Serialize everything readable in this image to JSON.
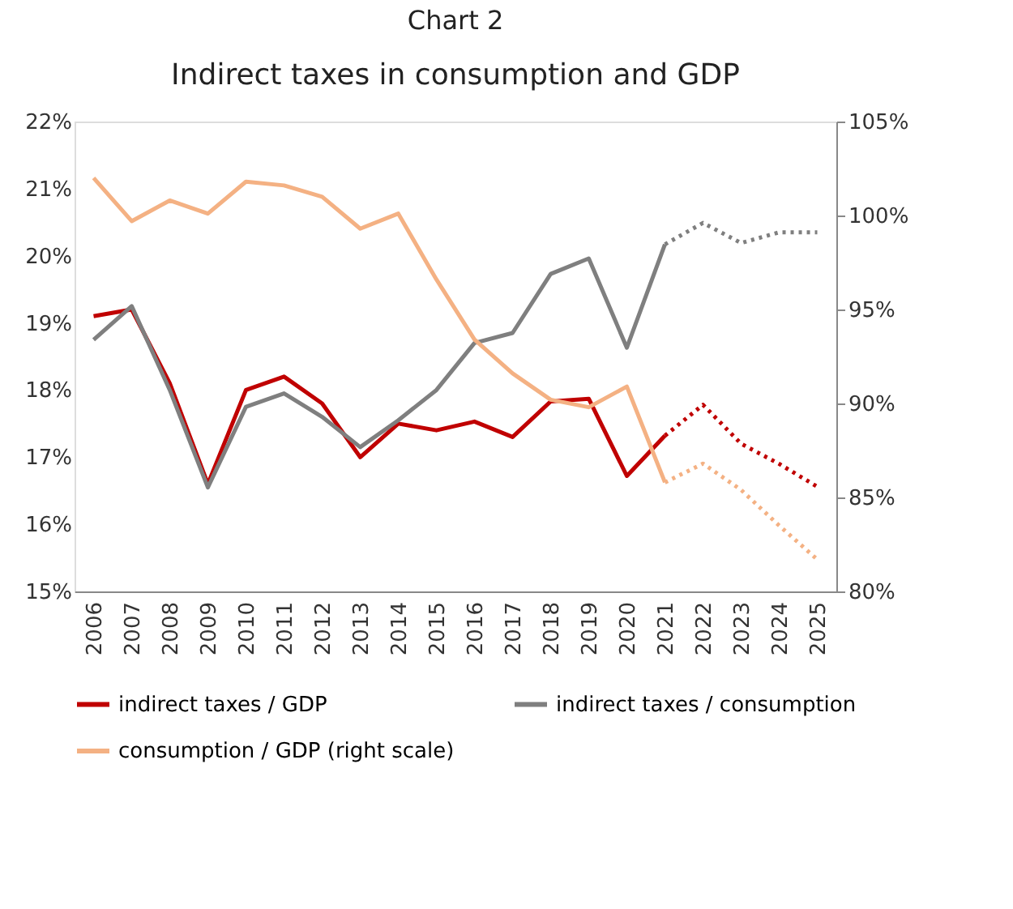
{
  "chart_data": {
    "type": "line",
    "title": "Indirect taxes in consumption and GDP",
    "annotations": [
      "Chart 2"
    ],
    "categories": [
      "2006",
      "2007",
      "2008",
      "2009",
      "2010",
      "2011",
      "2012",
      "2013",
      "2014",
      "2015",
      "2016",
      "2017",
      "2018",
      "2019",
      "2020",
      "2021",
      "2022",
      "2023",
      "2024",
      "2025"
    ],
    "series": [
      {
        "name": "indirect taxes / GDP",
        "color": "#c00000",
        "line_style": "solid",
        "values": [
          19.1,
          19.2,
          18.1,
          16.6,
          18.0,
          18.2,
          17.8,
          17.0,
          17.5,
          17.4,
          17.53,
          17.3,
          17.83,
          17.87,
          16.72,
          17.32,
          null,
          null,
          null,
          null
        ]
      },
      {
        "name": "indirect taxes / consumption",
        "color": "#7f7f7f",
        "line_style": "solid",
        "values": [
          18.75,
          19.25,
          18.0,
          16.55,
          17.75,
          17.95,
          17.6,
          17.15,
          17.55,
          18.0,
          18.7,
          18.85,
          19.73,
          19.96,
          18.63,
          20.17,
          null,
          null,
          null,
          null
        ]
      },
      {
        "name": "consumption / GDP (right scale)",
        "color": "#f4b183",
        "line_style": "solid",
        "axis": "y2",
        "values": [
          102.0,
          99.7,
          100.8,
          100.1,
          101.8,
          101.6,
          101.0,
          99.3,
          100.1,
          96.6,
          93.4,
          91.6,
          90.2,
          89.8,
          90.9,
          85.8,
          null,
          null,
          null,
          null
        ]
      },
      {
        "color": "#c00000",
        "line_style": "dotted",
        "values": [
          null,
          null,
          null,
          null,
          null,
          null,
          null,
          null,
          null,
          null,
          null,
          null,
          null,
          null,
          null,
          17.32,
          17.78,
          17.2,
          16.9,
          16.56
        ]
      },
      {
        "color": "#7f7f7f",
        "line_style": "dotted",
        "values": [
          null,
          null,
          null,
          null,
          null,
          null,
          null,
          null,
          null,
          null,
          null,
          null,
          null,
          null,
          null,
          20.17,
          20.49,
          20.19,
          20.35,
          20.35
        ]
      },
      {
        "color": "#f4b183",
        "line_style": "dotted",
        "axis": "y2",
        "values": [
          null,
          null,
          null,
          null,
          null,
          null,
          null,
          null,
          null,
          null,
          null,
          null,
          null,
          null,
          null,
          85.8,
          86.8,
          85.4,
          83.5,
          81.7
        ]
      }
    ],
    "ylim": [
      15,
      22
    ],
    "yticks": [
      {
        "value": 15,
        "label": "15%"
      },
      {
        "value": 16,
        "label": "16%"
      },
      {
        "value": 17,
        "label": "17%"
      },
      {
        "value": 18,
        "label": "18%"
      },
      {
        "value": 19,
        "label": "19%"
      },
      {
        "value": 20,
        "label": "20%"
      },
      {
        "value": 21,
        "label": "21%"
      },
      {
        "value": 22,
        "label": "22%"
      }
    ],
    "y2lim": [
      80,
      105
    ],
    "y2ticks": [
      {
        "value": 80,
        "label": "80%"
      },
      {
        "value": 85,
        "label": "85%"
      },
      {
        "value": 90,
        "label": "90%"
      },
      {
        "value": 95,
        "label": "95%"
      },
      {
        "value": 100,
        "label": "100%"
      },
      {
        "value": 105,
        "label": "105%"
      }
    ],
    "grid": false,
    "legend": "bottom",
    "marker": "none"
  }
}
